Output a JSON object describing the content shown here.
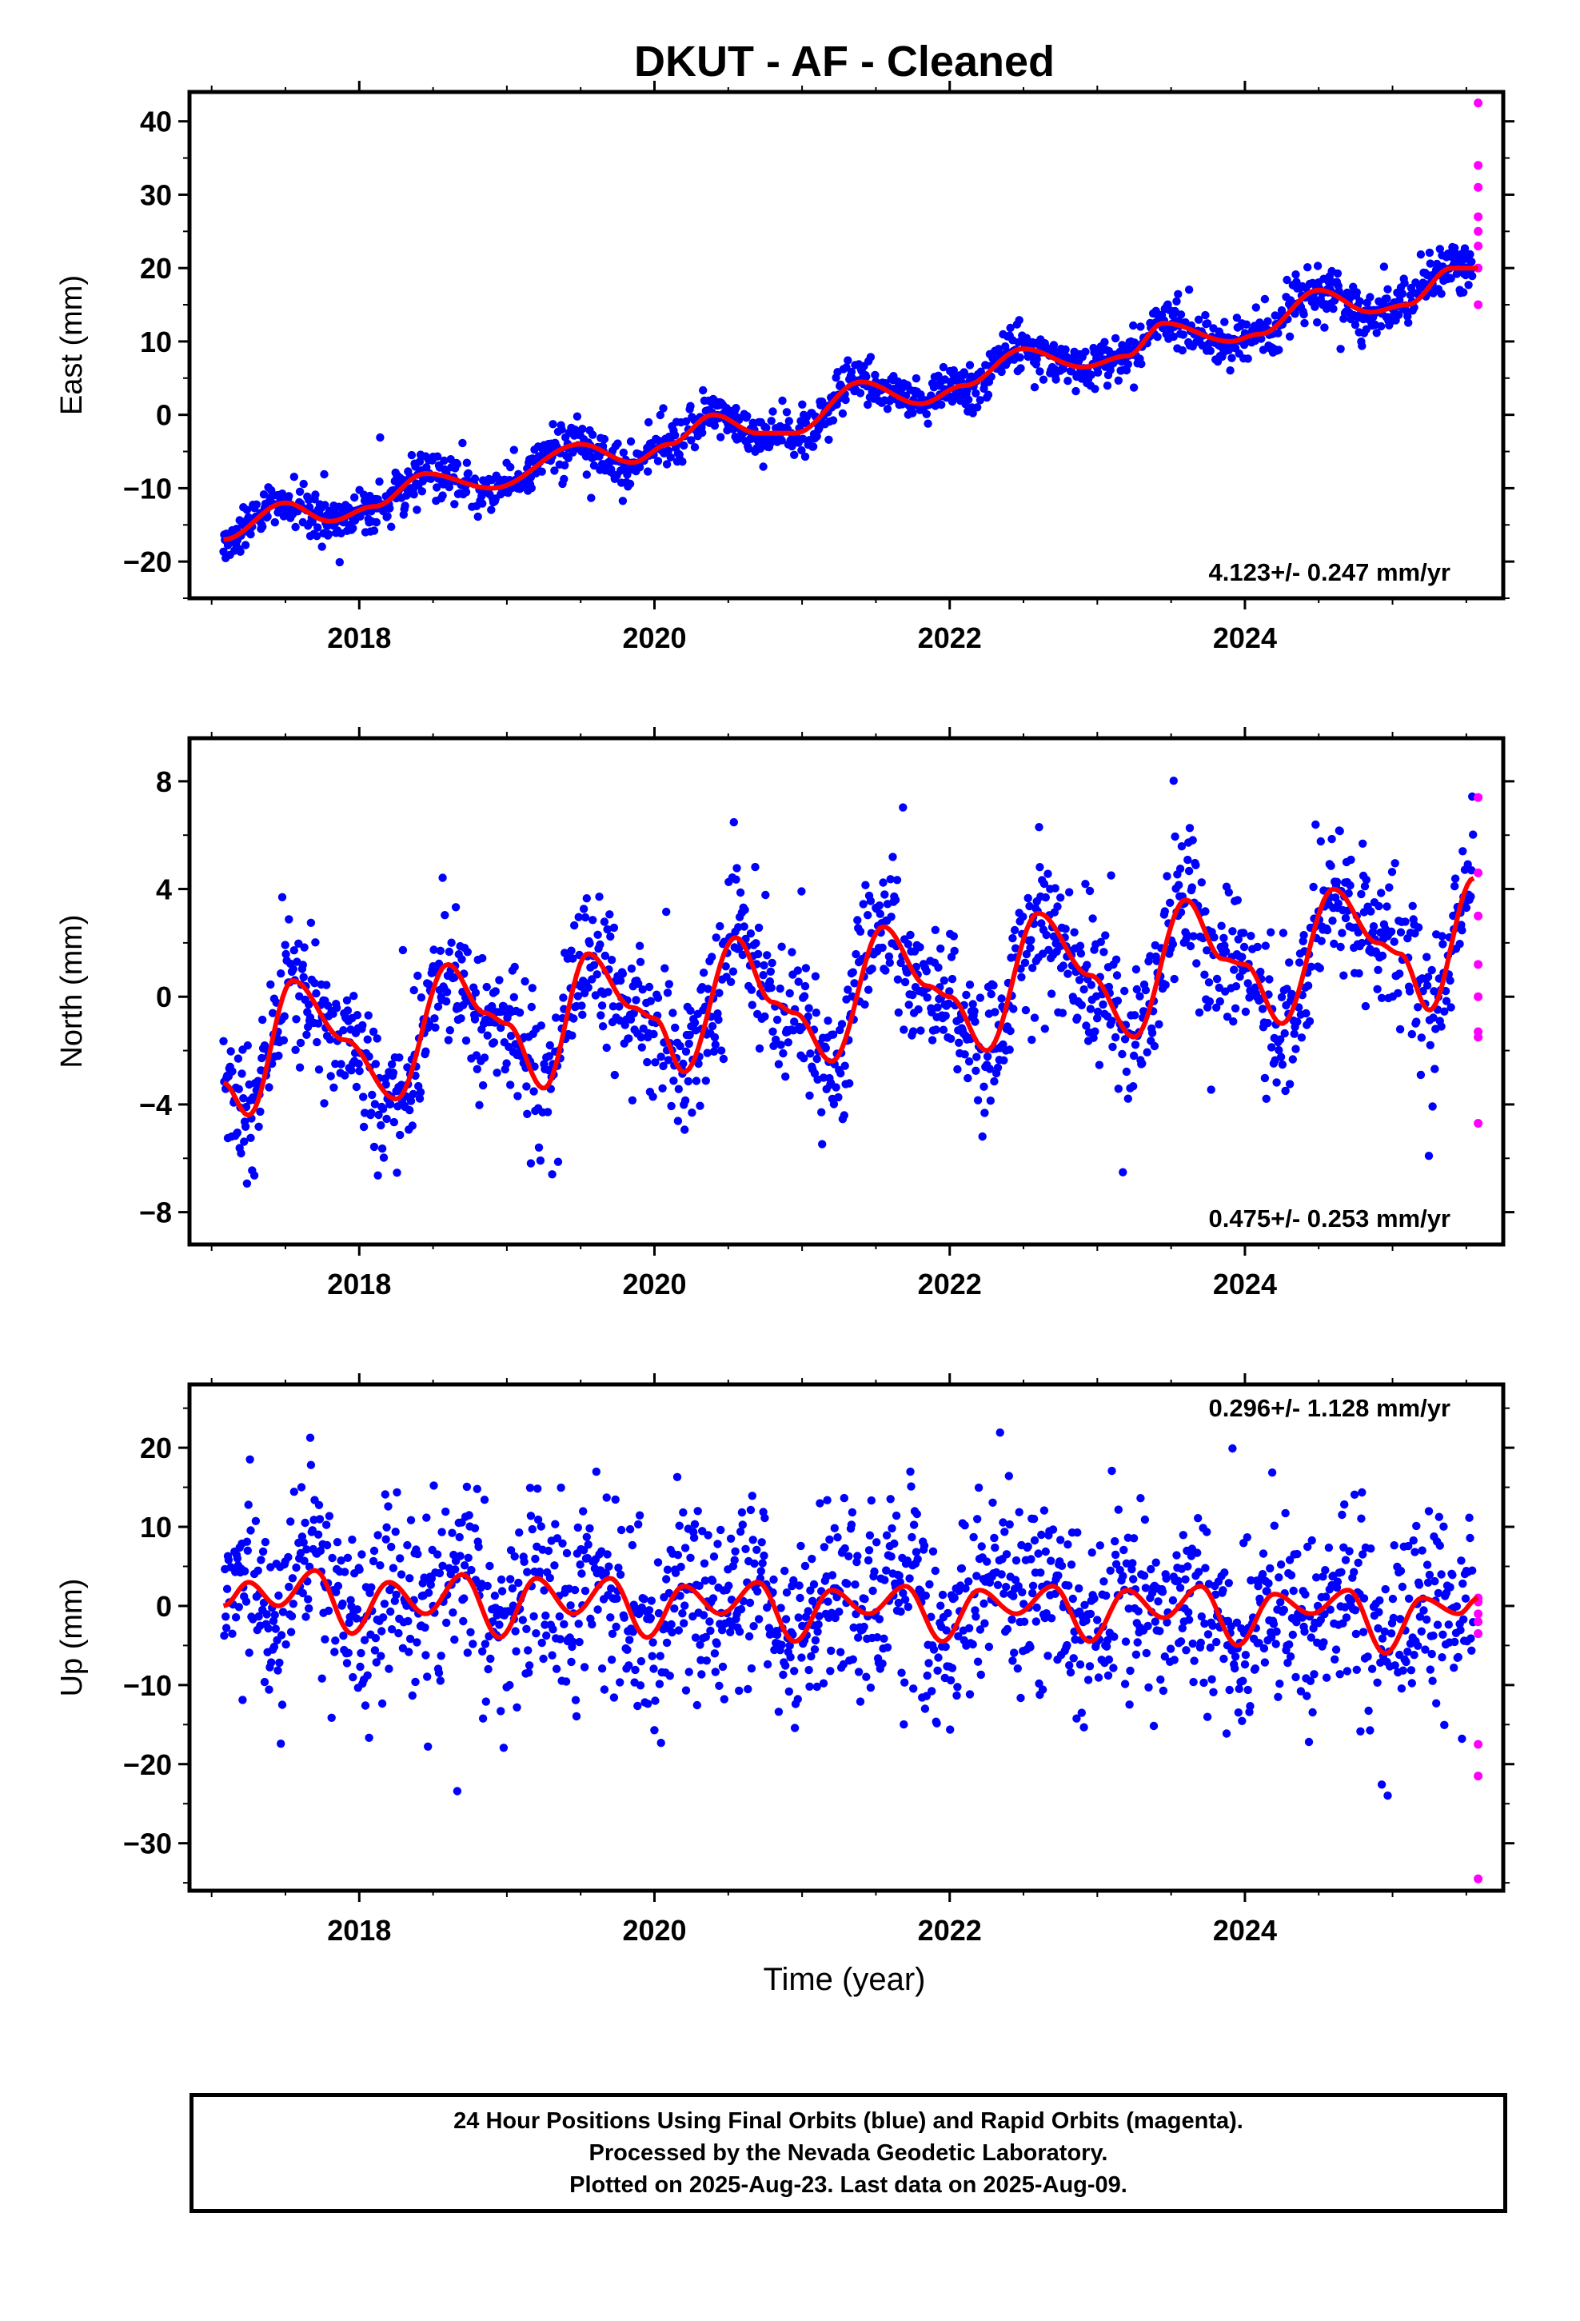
{
  "title": "DKUT  - AF - Cleaned",
  "xlabel": "Time (year)",
  "colors": {
    "final": "#0000ff",
    "rapid": "#ff00ff",
    "fit": "#ff0000",
    "axis": "#000000"
  },
  "caption": [
    "24 Hour Positions Using Final Orbits (blue) and Rapid Orbits (magenta).",
    "Processed by the Nevada Geodetic Laboratory.",
    "Plotted on 2025-Aug-23. Last data on 2025-Aug-09."
  ],
  "chart_data": [
    {
      "type": "scatter",
      "name": "east",
      "ylabel": "East (mm)",
      "rate_label": "4.123+/- 0.247 mm/yr",
      "xlim": [
        2016.85,
        2025.75
      ],
      "ylim": [
        -25,
        44
      ],
      "xticks": [
        2018,
        2020,
        2022,
        2024
      ],
      "yticks": [
        -20,
        -10,
        0,
        10,
        20,
        30,
        40
      ],
      "trend": {
        "start_year": 2017.08,
        "end_year": 2025.58,
        "start_mm": -16.5,
        "end_mm": 21.0
      },
      "scatter_sd": 1.6,
      "fit": {
        "x": [
          2017.08,
          2017.5,
          2017.8,
          2018.1,
          2018.45,
          2018.9,
          2019.5,
          2019.85,
          2020.1,
          2020.4,
          2020.7,
          2020.95,
          2021.4,
          2021.8,
          2022.1,
          2022.5,
          2022.9,
          2023.2,
          2023.45,
          2023.9,
          2024.1,
          2024.5,
          2024.85,
          2025.1,
          2025.4,
          2025.58
        ],
        "y": [
          -17,
          -12,
          -14.5,
          -12.5,
          -8,
          -10,
          -4,
          -6.5,
          -4,
          0,
          -2.5,
          -2.5,
          4.5,
          1.5,
          4,
          9,
          6.5,
          8,
          12.5,
          10,
          11,
          17,
          14,
          15,
          20,
          20
        ]
      },
      "rapid": {
        "x": [
          2025.58,
          2025.58,
          2025.58,
          2025.58,
          2025.58,
          2025.58,
          2025.58,
          2025.58
        ],
        "y": [
          42.5,
          34,
          31,
          27,
          25,
          23,
          20,
          15
        ]
      }
    },
    {
      "type": "scatter",
      "name": "north",
      "ylabel": "North (mm)",
      "rate_label": "0.475+/- 0.253 mm/yr",
      "xlim": [
        2016.85,
        2025.75
      ],
      "ylim": [
        -9.2,
        9.6
      ],
      "xticks": [
        2018,
        2020,
        2022,
        2024
      ],
      "yticks": [
        -8,
        -4,
        0,
        4,
        8
      ],
      "trend": {
        "start_year": 2017.08,
        "end_year": 2025.58,
        "start_mm": 0,
        "end_mm": 0
      },
      "scatter_sd": 1.3,
      "fit": {
        "x": [
          2017.08,
          2017.25,
          2017.55,
          2017.9,
          2018.25,
          2018.6,
          2018.85,
          2019.0,
          2019.25,
          2019.55,
          2019.85,
          2020.0,
          2020.2,
          2020.55,
          2020.8,
          2020.95,
          2021.2,
          2021.55,
          2021.85,
          2022.0,
          2022.25,
          2022.6,
          2022.95,
          2023.25,
          2023.6,
          2023.85,
          2024.0,
          2024.25,
          2024.6,
          2024.9,
          2025.05,
          2025.25,
          2025.55
        ],
        "y": [
          -3.2,
          -4.4,
          0.6,
          -1.6,
          -3.8,
          1.2,
          -0.6,
          -1.0,
          -3.4,
          1.6,
          -0.4,
          -0.8,
          -2.8,
          2.2,
          -0.2,
          -0.6,
          -2.4,
          2.6,
          0.4,
          0.0,
          -2.0,
          3.1,
          0.8,
          -1.5,
          3.6,
          1.4,
          1.2,
          -1.0,
          4.0,
          2.0,
          1.6,
          -0.5,
          4.4
        ]
      },
      "rapid": {
        "x": [
          2025.58,
          2025.58,
          2025.58,
          2025.58,
          2025.58,
          2025.58,
          2025.58,
          2025.58
        ],
        "y": [
          7.4,
          4.6,
          3.0,
          1.2,
          0.0,
          -1.3,
          -1.5,
          -4.7
        ]
      }
    },
    {
      "type": "scatter",
      "name": "up",
      "ylabel": "Up (mm)",
      "rate_label": "0.296+/- 1.128 mm/yr",
      "xlim": [
        2016.85,
        2025.75
      ],
      "ylim": [
        -36,
        28
      ],
      "xticks": [
        2018,
        2020,
        2022,
        2024
      ],
      "yticks": [
        -30,
        -20,
        -10,
        0,
        10,
        20
      ],
      "trend": {
        "start_year": 2017.08,
        "end_year": 2025.58,
        "start_mm": 0,
        "end_mm": 0
      },
      "scatter_sd": 6.0,
      "fit": {
        "x": [
          2017.08,
          2017.25,
          2017.45,
          2017.7,
          2017.95,
          2018.2,
          2018.45,
          2018.7,
          2018.95,
          2019.2,
          2019.45,
          2019.7,
          2019.95,
          2020.2,
          2020.45,
          2020.7,
          2020.95,
          2021.2,
          2021.45,
          2021.7,
          2021.95,
          2022.2,
          2022.45,
          2022.7,
          2022.95,
          2023.2,
          2023.45,
          2023.7,
          2023.95,
          2024.2,
          2024.45,
          2024.7,
          2024.95,
          2025.2,
          2025.45,
          2025.58
        ],
        "y": [
          0,
          3,
          0,
          4.5,
          -3.5,
          3,
          -1,
          4,
          -4,
          3.5,
          -1,
          3.5,
          -4,
          2.5,
          -1,
          3,
          -4.5,
          2,
          -1,
          2.5,
          -4.5,
          2,
          -1,
          2.5,
          -4.5,
          2,
          -1.5,
          2.5,
          -5,
          1.5,
          -1,
          2,
          -6,
          1,
          -1,
          1
        ]
      },
      "rapid": {
        "x": [
          2025.58,
          2025.58,
          2025.58,
          2025.58,
          2025.58,
          2025.58,
          2025.58,
          2025.58
        ],
        "y": [
          1,
          -1,
          -3.5,
          -17.5,
          -21.5,
          -34.5,
          0.5,
          -2
        ]
      }
    }
  ]
}
